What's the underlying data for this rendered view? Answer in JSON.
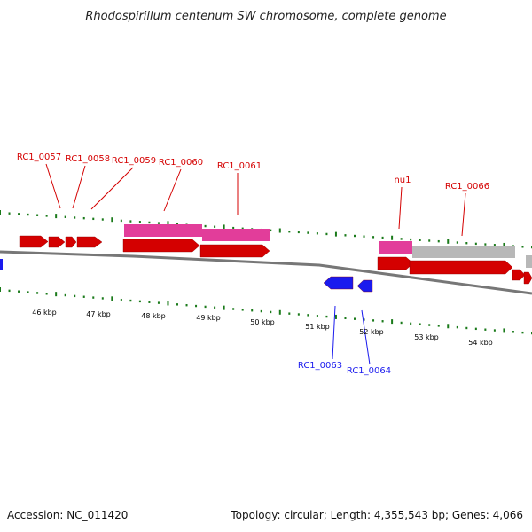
{
  "title": "Rhodospirillum centenum SW chromosome, complete genome",
  "footer": {
    "accession": "Accession: NC_011420",
    "summary": "Topology: circular; Length: 4,355,543 bp; Genes: 4,066"
  },
  "colors": {
    "forward": "#d40000",
    "reverse": "#1a1aee",
    "rna": "#e23d9a",
    "pseudo": "#b8b8b8",
    "backbone": "#777777",
    "dots": "#1a7a1a"
  },
  "gene_labels": [
    {
      "name": "RC1_0057",
      "strand": "forward"
    },
    {
      "name": "RC1_0058",
      "strand": "forward"
    },
    {
      "name": "RC1_0059",
      "strand": "forward"
    },
    {
      "name": "RC1_0060",
      "strand": "forward"
    },
    {
      "name": "RC1_0061",
      "strand": "forward"
    },
    {
      "name": "nu1",
      "strand": "forward"
    },
    {
      "name": "RC1_0066",
      "strand": "forward"
    },
    {
      "name": "RC1_0063",
      "strand": "reverse"
    },
    {
      "name": "RC1_0064",
      "strand": "reverse"
    }
  ],
  "scale_ticks": [
    "46 kbp",
    "47 kbp",
    "48 kbp",
    "49 kbp",
    "50 kbp",
    "51 kbp",
    "52 kbp",
    "53 kbp",
    "54 kbp"
  ]
}
